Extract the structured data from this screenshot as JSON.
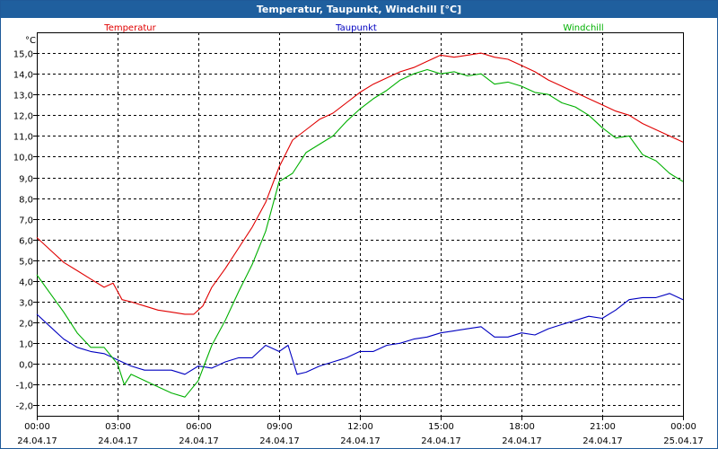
{
  "window": {
    "title": "Temperatur, Taupunkt, Windchill [°C]"
  },
  "chart_data": {
    "type": "line",
    "title": "Temperatur, Taupunkt, Windchill [°C]",
    "ylabel": "°C",
    "xlabel": "",
    "ylim": [
      -2.5,
      16.0
    ],
    "y_ticks": [
      -2.0,
      -1.0,
      0.0,
      1.0,
      2.0,
      3.0,
      4.0,
      5.0,
      6.0,
      7.0,
      8.0,
      9.0,
      10.0,
      11.0,
      12.0,
      13.0,
      14.0,
      15.0
    ],
    "y_tick_labels": [
      "-2,0",
      "-1,0",
      "0,0",
      "1,0",
      "2,0",
      "3,0",
      "4,0",
      "5,0",
      "6,0",
      "7,0",
      "8,0",
      "9,0",
      "10,0",
      "11,0",
      "12,0",
      "13,0",
      "14,0",
      "15,0"
    ],
    "xlim": [
      "2017-04-24 00:00",
      "2017-04-25 00:00"
    ],
    "x_ticks": [
      {
        "value": "2017-04-24 00:00",
        "time": "00:00",
        "date": "24.04.17"
      },
      {
        "value": "2017-04-24 03:00",
        "time": "03:00",
        "date": "24.04.17"
      },
      {
        "value": "2017-04-24 06:00",
        "time": "06:00",
        "date": "24.04.17"
      },
      {
        "value": "2017-04-24 09:00",
        "time": "09:00",
        "date": "24.04.17"
      },
      {
        "value": "2017-04-24 12:00",
        "time": "12:00",
        "date": "24.04.17"
      },
      {
        "value": "2017-04-24 15:00",
        "time": "15:00",
        "date": "24.04.17"
      },
      {
        "value": "2017-04-24 18:00",
        "time": "18:00",
        "date": "24.04.17"
      },
      {
        "value": "2017-04-24 21:00",
        "time": "21:00",
        "date": "24.04.17"
      },
      {
        "value": "2017-04-25 00:00",
        "time": "00:00",
        "date": "25.04.17"
      }
    ],
    "grid": true,
    "grid_style": "dashed",
    "legend": "top, spread across",
    "series": [
      {
        "name": "Temperatur",
        "color": "#e00000",
        "points": [
          [
            "2017-04-24 00:00",
            6.1
          ],
          [
            "2017-04-24 00:30",
            5.5
          ],
          [
            "2017-04-24 01:00",
            4.9
          ],
          [
            "2017-04-24 01:30",
            4.5
          ],
          [
            "2017-04-24 02:00",
            4.1
          ],
          [
            "2017-04-24 02:30",
            3.7
          ],
          [
            "2017-04-24 02:50",
            3.9
          ],
          [
            "2017-04-24 03:10",
            3.1
          ],
          [
            "2017-04-24 03:30",
            3.0
          ],
          [
            "2017-04-24 04:00",
            2.8
          ],
          [
            "2017-04-24 04:30",
            2.6
          ],
          [
            "2017-04-24 05:00",
            2.5
          ],
          [
            "2017-04-24 05:30",
            2.4
          ],
          [
            "2017-04-24 05:50",
            2.4
          ],
          [
            "2017-04-24 06:10",
            2.8
          ],
          [
            "2017-04-24 06:30",
            3.7
          ],
          [
            "2017-04-24 07:00",
            4.6
          ],
          [
            "2017-04-24 07:30",
            5.6
          ],
          [
            "2017-04-24 08:00",
            6.6
          ],
          [
            "2017-04-24 08:30",
            7.8
          ],
          [
            "2017-04-24 09:00",
            9.5
          ],
          [
            "2017-04-24 09:30",
            10.8
          ],
          [
            "2017-04-24 10:00",
            11.3
          ],
          [
            "2017-04-24 10:30",
            11.8
          ],
          [
            "2017-04-24 11:00",
            12.1
          ],
          [
            "2017-04-24 11:30",
            12.6
          ],
          [
            "2017-04-24 12:00",
            13.1
          ],
          [
            "2017-04-24 12:30",
            13.5
          ],
          [
            "2017-04-24 13:00",
            13.8
          ],
          [
            "2017-04-24 13:30",
            14.1
          ],
          [
            "2017-04-24 14:00",
            14.3
          ],
          [
            "2017-04-24 14:30",
            14.6
          ],
          [
            "2017-04-24 15:00",
            14.9
          ],
          [
            "2017-04-24 15:30",
            14.8
          ],
          [
            "2017-04-24 16:00",
            14.9
          ],
          [
            "2017-04-24 16:30",
            15.0
          ],
          [
            "2017-04-24 17:00",
            14.8
          ],
          [
            "2017-04-24 17:30",
            14.7
          ],
          [
            "2017-04-24 18:00",
            14.4
          ],
          [
            "2017-04-24 18:30",
            14.1
          ],
          [
            "2017-04-24 19:00",
            13.7
          ],
          [
            "2017-04-24 19:30",
            13.4
          ],
          [
            "2017-04-24 20:00",
            13.1
          ],
          [
            "2017-04-24 20:30",
            12.8
          ],
          [
            "2017-04-24 21:00",
            12.5
          ],
          [
            "2017-04-24 21:30",
            12.2
          ],
          [
            "2017-04-24 22:00",
            12.0
          ],
          [
            "2017-04-24 22:30",
            11.6
          ],
          [
            "2017-04-24 23:00",
            11.3
          ],
          [
            "2017-04-24 23:30",
            11.0
          ],
          [
            "2017-04-25 00:00",
            10.7
          ]
        ]
      },
      {
        "name": "Taupunkt",
        "color": "#0000c0",
        "points": [
          [
            "2017-04-24 00:00",
            2.4
          ],
          [
            "2017-04-24 00:30",
            1.8
          ],
          [
            "2017-04-24 01:00",
            1.2
          ],
          [
            "2017-04-24 01:30",
            0.8
          ],
          [
            "2017-04-24 02:00",
            0.6
          ],
          [
            "2017-04-24 02:30",
            0.5
          ],
          [
            "2017-04-24 03:00",
            0.2
          ],
          [
            "2017-04-24 03:30",
            -0.1
          ],
          [
            "2017-04-24 04:00",
            -0.3
          ],
          [
            "2017-04-24 04:30",
            -0.3
          ],
          [
            "2017-04-24 05:00",
            -0.3
          ],
          [
            "2017-04-24 05:30",
            -0.5
          ],
          [
            "2017-04-24 06:00",
            -0.1
          ],
          [
            "2017-04-24 06:30",
            -0.2
          ],
          [
            "2017-04-24 07:00",
            0.1
          ],
          [
            "2017-04-24 07:30",
            0.3
          ],
          [
            "2017-04-24 08:00",
            0.3
          ],
          [
            "2017-04-24 08:30",
            0.9
          ],
          [
            "2017-04-24 09:00",
            0.6
          ],
          [
            "2017-04-24 09:20",
            0.9
          ],
          [
            "2017-04-24 09:40",
            -0.5
          ],
          [
            "2017-04-24 10:00",
            -0.4
          ],
          [
            "2017-04-24 10:30",
            -0.1
          ],
          [
            "2017-04-24 11:00",
            0.1
          ],
          [
            "2017-04-24 11:30",
            0.3
          ],
          [
            "2017-04-24 12:00",
            0.6
          ],
          [
            "2017-04-24 12:30",
            0.6
          ],
          [
            "2017-04-24 13:00",
            0.9
          ],
          [
            "2017-04-24 13:30",
            1.0
          ],
          [
            "2017-04-24 14:00",
            1.2
          ],
          [
            "2017-04-24 14:30",
            1.3
          ],
          [
            "2017-04-24 15:00",
            1.5
          ],
          [
            "2017-04-24 15:30",
            1.6
          ],
          [
            "2017-04-24 16:00",
            1.7
          ],
          [
            "2017-04-24 16:30",
            1.8
          ],
          [
            "2017-04-24 17:00",
            1.3
          ],
          [
            "2017-04-24 17:30",
            1.3
          ],
          [
            "2017-04-24 18:00",
            1.5
          ],
          [
            "2017-04-24 18:30",
            1.4
          ],
          [
            "2017-04-24 19:00",
            1.7
          ],
          [
            "2017-04-24 19:30",
            1.9
          ],
          [
            "2017-04-24 20:00",
            2.1
          ],
          [
            "2017-04-24 20:30",
            2.3
          ],
          [
            "2017-04-24 21:00",
            2.2
          ],
          [
            "2017-04-24 21:30",
            2.6
          ],
          [
            "2017-04-24 22:00",
            3.1
          ],
          [
            "2017-04-24 22:30",
            3.2
          ],
          [
            "2017-04-24 23:00",
            3.2
          ],
          [
            "2017-04-24 23:30",
            3.4
          ],
          [
            "2017-04-25 00:00",
            3.1
          ]
        ]
      },
      {
        "name": "Windchill",
        "color": "#00b000",
        "points": [
          [
            "2017-04-24 00:00",
            4.3
          ],
          [
            "2017-04-24 00:30",
            3.4
          ],
          [
            "2017-04-24 01:00",
            2.5
          ],
          [
            "2017-04-24 01:30",
            1.5
          ],
          [
            "2017-04-24 02:00",
            0.8
          ],
          [
            "2017-04-24 02:30",
            0.8
          ],
          [
            "2017-04-24 03:00",
            0.0
          ],
          [
            "2017-04-24 03:15",
            -1.0
          ],
          [
            "2017-04-24 03:30",
            -0.5
          ],
          [
            "2017-04-24 04:00",
            -0.8
          ],
          [
            "2017-04-24 04:30",
            -1.1
          ],
          [
            "2017-04-24 05:00",
            -1.4
          ],
          [
            "2017-04-24 05:30",
            -1.6
          ],
          [
            "2017-04-24 06:00",
            -0.8
          ],
          [
            "2017-04-24 06:30",
            0.9
          ],
          [
            "2017-04-24 07:00",
            2.1
          ],
          [
            "2017-04-24 07:30",
            3.5
          ],
          [
            "2017-04-24 08:00",
            4.8
          ],
          [
            "2017-04-24 08:30",
            6.4
          ],
          [
            "2017-04-24 09:00",
            8.8
          ],
          [
            "2017-04-24 09:30",
            9.2
          ],
          [
            "2017-04-24 10:00",
            10.2
          ],
          [
            "2017-04-24 10:30",
            10.6
          ],
          [
            "2017-04-24 11:00",
            11.0
          ],
          [
            "2017-04-24 11:30",
            11.7
          ],
          [
            "2017-04-24 12:00",
            12.3
          ],
          [
            "2017-04-24 12:30",
            12.8
          ],
          [
            "2017-04-24 13:00",
            13.2
          ],
          [
            "2017-04-24 13:30",
            13.7
          ],
          [
            "2017-04-24 14:00",
            14.0
          ],
          [
            "2017-04-24 14:30",
            14.2
          ],
          [
            "2017-04-24 15:00",
            14.0
          ],
          [
            "2017-04-24 15:30",
            14.1
          ],
          [
            "2017-04-24 16:00",
            13.9
          ],
          [
            "2017-04-24 16:30",
            14.0
          ],
          [
            "2017-04-24 17:00",
            13.5
          ],
          [
            "2017-04-24 17:30",
            13.6
          ],
          [
            "2017-04-24 18:00",
            13.4
          ],
          [
            "2017-04-24 18:30",
            13.1
          ],
          [
            "2017-04-24 19:00",
            13.0
          ],
          [
            "2017-04-24 19:30",
            12.6
          ],
          [
            "2017-04-24 20:00",
            12.4
          ],
          [
            "2017-04-24 20:30",
            12.0
          ],
          [
            "2017-04-24 21:00",
            11.4
          ],
          [
            "2017-04-24 21:30",
            10.9
          ],
          [
            "2017-04-24 22:00",
            11.0
          ],
          [
            "2017-04-24 22:30",
            10.1
          ],
          [
            "2017-04-24 23:00",
            9.8
          ],
          [
            "2017-04-24 23:30",
            9.2
          ],
          [
            "2017-04-25 00:00",
            8.8
          ]
        ]
      }
    ]
  }
}
